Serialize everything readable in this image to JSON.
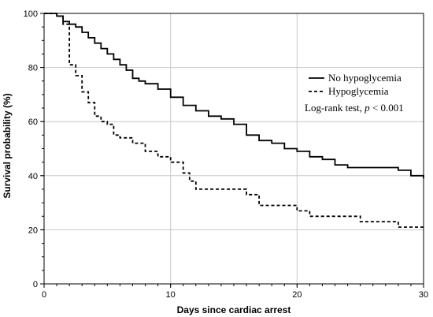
{
  "chart_data": {
    "type": "line",
    "title": "",
    "xlabel": "Days since cardiac arrest",
    "ylabel": "Survival probability (%)",
    "xlim": [
      0,
      30
    ],
    "ylim": [
      0,
      100
    ],
    "x_ticks": [
      0,
      10,
      20,
      30
    ],
    "y_ticks": [
      0,
      20,
      40,
      60,
      80,
      100
    ],
    "grid": true,
    "legend_position": "right",
    "series": [
      {
        "name": "No hypoglycemia",
        "line_style": "solid",
        "color": "#000000",
        "x": [
          0,
          1,
          1.5,
          2,
          2.5,
          3,
          3.5,
          4,
          4.5,
          5,
          5.5,
          6,
          6.5,
          7,
          7.5,
          8,
          9,
          10,
          11,
          12,
          13,
          14,
          15,
          16,
          17,
          18,
          19,
          20,
          21,
          22,
          23,
          24,
          25,
          26,
          27,
          28,
          29,
          30
        ],
        "values": [
          100,
          99,
          97,
          96,
          95,
          93,
          91,
          89,
          87,
          85,
          83,
          81,
          79,
          76,
          75,
          74,
          72,
          69,
          66,
          64,
          62,
          61,
          59,
          55,
          53,
          52,
          50,
          49,
          47,
          46,
          44,
          43,
          43,
          43,
          43,
          42,
          40,
          39
        ]
      },
      {
        "name": "Hypoglycemia",
        "line_style": "dashed",
        "color": "#000000",
        "x": [
          0,
          1,
          1.5,
          2,
          2.5,
          3,
          3.5,
          4,
          4.5,
          5,
          5.5,
          6,
          7,
          8,
          9,
          10,
          11,
          11.5,
          12,
          13,
          14,
          15,
          16,
          17,
          18,
          19,
          20,
          21,
          22,
          23,
          24,
          25,
          26,
          27,
          28,
          29,
          30
        ],
        "values": [
          100,
          99,
          96,
          81,
          77,
          71,
          67,
          62,
          60,
          59,
          55,
          54,
          52,
          49,
          47,
          45,
          41,
          38,
          35,
          35,
          35,
          35,
          33,
          29,
          29,
          29,
          27,
          25,
          25,
          25,
          25,
          23,
          23,
          23,
          21,
          21,
          21
        ]
      }
    ],
    "annotation": {
      "prefix": "Log-rank test, ",
      "italic": "p",
      "suffix": " < 0.001"
    }
  }
}
